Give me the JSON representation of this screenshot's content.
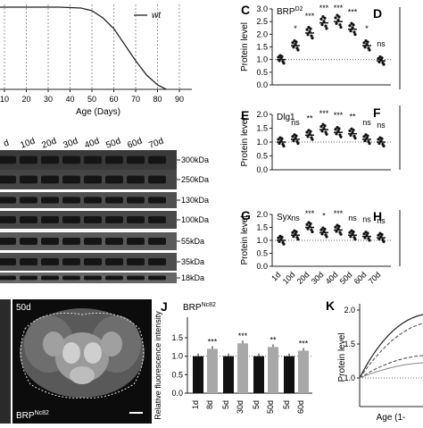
{
  "survival": {
    "legend": "wt",
    "x_ticks": [
      "10",
      "20",
      "30",
      "40",
      "50",
      "60",
      "70",
      "80",
      "90"
    ],
    "x_label": "Age (Days)"
  },
  "blot": {
    "lanes": [
      "d",
      "10d",
      "20d",
      "30d",
      "40d",
      "50d",
      "60d",
      "70d"
    ],
    "markers": [
      "300kDa",
      "250kDa",
      "130kDa",
      "100kDa",
      "55kDa",
      "35kDa",
      "18kDa"
    ]
  },
  "panel_letters": {
    "C": "C",
    "D": "D",
    "E": "E",
    "F": "F",
    "G": "G",
    "H": "H",
    "J": "J",
    "K": "K"
  },
  "scatter_x_ticks": [
    "1d",
    "10d",
    "20d",
    "30d",
    "40d",
    "50d",
    "60d",
    "70d"
  ],
  "chart_data": [
    {
      "panel": "C",
      "type": "scatter",
      "title": "BRP",
      "title_sup": "D2",
      "ylabel": "Protein level",
      "ylim": [
        0.0,
        3.0
      ],
      "y_ticks": [
        "0.0",
        "0.5",
        "1.0",
        "1.5",
        "2.0",
        "2.5",
        "3.0"
      ],
      "categories": [
        "1d",
        "10d",
        "20d",
        "30d",
        "40d",
        "50d",
        "60d",
        "70d"
      ],
      "means": [
        1.0,
        1.55,
        2.05,
        2.45,
        2.5,
        2.2,
        1.55,
        0.95
      ],
      "significance": [
        "",
        "*",
        "***",
        "***",
        "***",
        "***",
        "*",
        "ns"
      ],
      "reference_line": 1.0
    },
    {
      "panel": "E",
      "type": "scatter",
      "title": "Dlg1",
      "ylabel": "Protein level",
      "ylim": [
        0.0,
        2.0
      ],
      "y_ticks": [
        "0.0",
        "0.5",
        "1.0",
        "1.5",
        "2.0"
      ],
      "categories": [
        "1d",
        "10d",
        "20d",
        "30d",
        "40d",
        "50d",
        "60d",
        "70d"
      ],
      "means": [
        1.0,
        1.1,
        1.25,
        1.45,
        1.35,
        1.3,
        1.1,
        1.0
      ],
      "significance": [
        "",
        "ns",
        "**",
        "***",
        "***",
        "**",
        "ns",
        "ns"
      ],
      "reference_line": 1.0
    },
    {
      "panel": "G",
      "type": "scatter",
      "title": "Syx",
      "ylabel": "Protein level",
      "ylim": [
        0.0,
        2.0
      ],
      "y_ticks": [
        "0.0",
        "0.5",
        "1.0",
        "1.5",
        "2.0"
      ],
      "categories": [
        "1d",
        "10d",
        "20d",
        "30d",
        "40d",
        "50d",
        "60d",
        "70d"
      ],
      "means": [
        1.0,
        1.2,
        1.5,
        1.3,
        1.4,
        1.2,
        1.15,
        1.1
      ],
      "significance": [
        "",
        "ns",
        "***",
        "*",
        "***",
        "ns",
        "ns",
        "ns"
      ],
      "reference_line": 1.0
    },
    {
      "panel": "J",
      "type": "bar",
      "title": "BRP",
      "title_sup": "Nc82",
      "ylabel": "Relative fluorescence intensity",
      "ylim": [
        0.0,
        1.5
      ],
      "y_ticks": [
        "0.0",
        "0.5",
        "1.0",
        "1.5"
      ],
      "categories": [
        "1d",
        "8d",
        "5d",
        "30d",
        "5d",
        "50d",
        "5d",
        "60d"
      ],
      "values": [
        1.0,
        1.2,
        1.0,
        1.35,
        1.0,
        1.25,
        1.0,
        1.15
      ],
      "colors": [
        "#111111",
        "#a8a8a8",
        "#111111",
        "#a8a8a8",
        "#111111",
        "#a8a8a8",
        "#111111",
        "#a8a8a8"
      ],
      "significance": [
        "",
        "***",
        "",
        "***",
        "",
        "**",
        "",
        "***"
      ]
    },
    {
      "panel": "K",
      "type": "line",
      "ylabel": "Protein level",
      "xlabel": "Age (1-",
      "y_ticks": [
        "1.0",
        "1.5",
        "2.0"
      ]
    }
  ],
  "image_panel": {
    "age_label": "50d",
    "stain_label": "BRP",
    "stain_sup": "Nc82"
  }
}
